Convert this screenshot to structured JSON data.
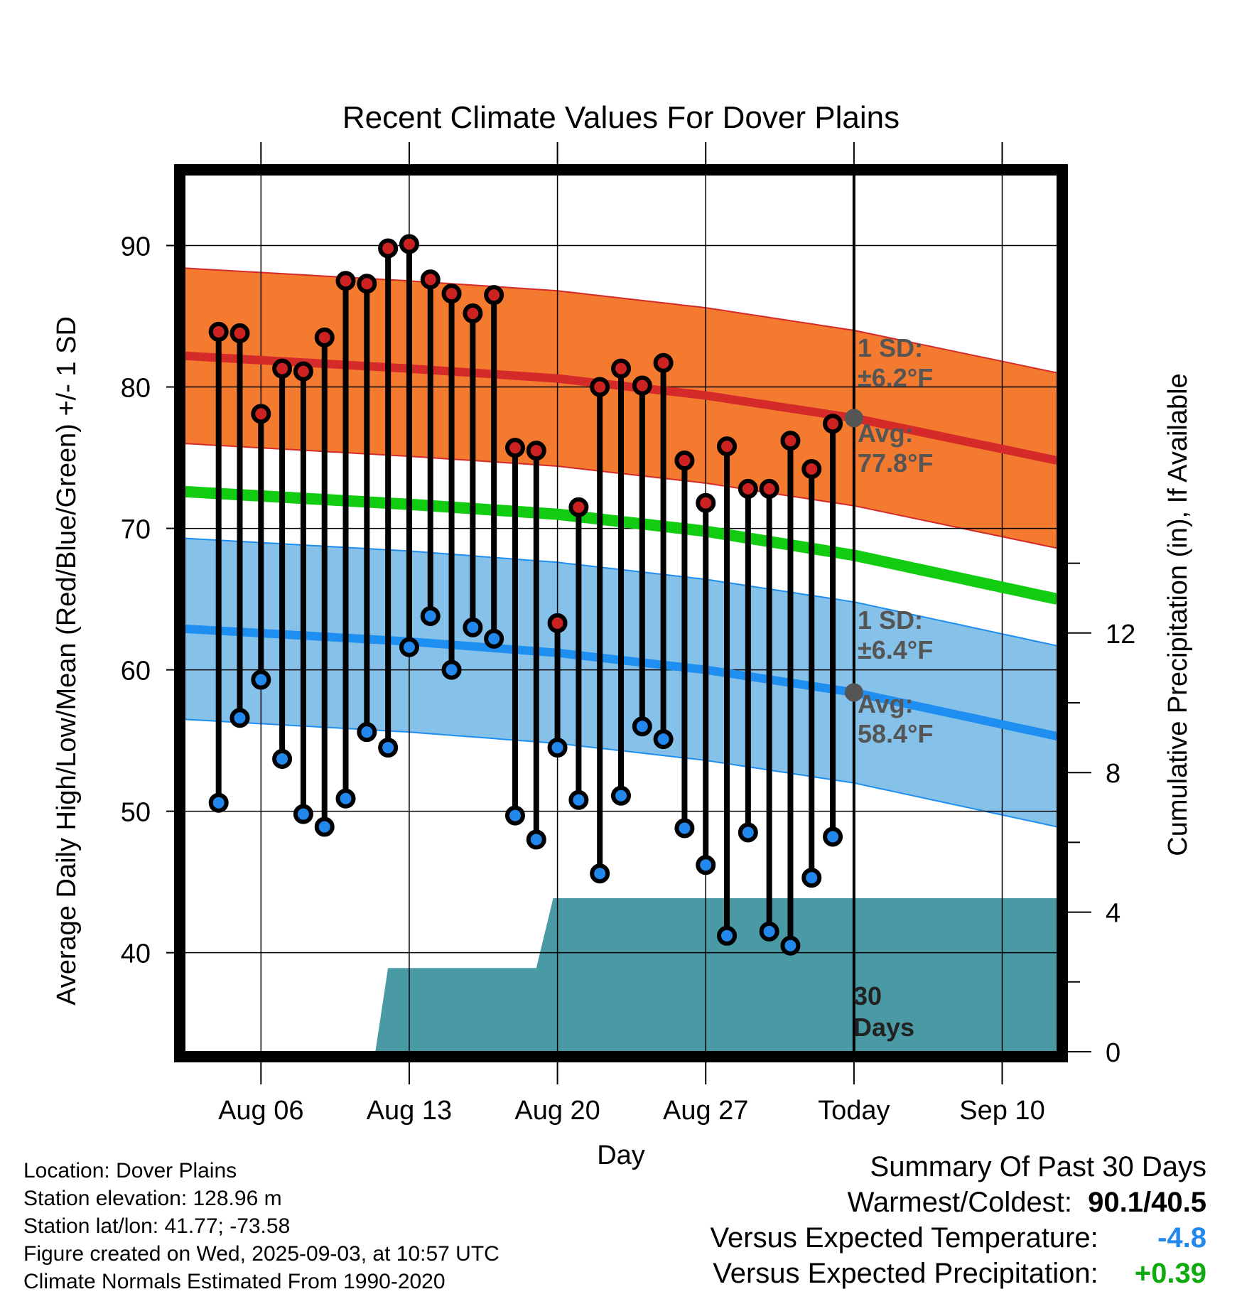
{
  "chart_data": {
    "type": "line",
    "title": "Recent Climate Values For Dover Plains",
    "xlabel": "Day",
    "ylabel_left": "Average Daily High/Low/Mean (Red/Blue/Green) +/- 1 SD",
    "ylabel_right": "Cumulative Precipitation (in), If Available",
    "x_ticks": [
      "Aug 06",
      "Aug 13",
      "Aug 20",
      "Aug 27",
      "Today",
      "Sep 10"
    ],
    "x_tick_days": [
      -28,
      -21,
      -14,
      -7,
      0,
      7
    ],
    "y_left_ticks": [
      40,
      50,
      60,
      70,
      80,
      90
    ],
    "y_left_range": [
      33,
      95
    ],
    "y_right_ticks": [
      0,
      4,
      8,
      12
    ],
    "x_range_days": [
      -31.6,
      9.6
    ],
    "grid": true,
    "colors": {
      "high_band": "#f47a30",
      "high_line": "#d42a2a",
      "low_band": "#85c1e9",
      "low_line": "#1e8ff0",
      "mean_line": "#11cc11",
      "precip": "#4a9aa5",
      "high_dot": "#cc2222",
      "low_dot": "#2288ee",
      "avg_dot": "#555555",
      "warm_text": "#000000",
      "versus_temp": "#2288ee",
      "versus_precip": "#11aa11"
    },
    "normals": {
      "day": [
        -31.6,
        -21,
        -14,
        -7,
        0,
        9.6
      ],
      "high_avg": [
        82.2,
        81.3,
        80.6,
        79.4,
        77.8,
        74.8
      ],
      "high_sd": 6.2,
      "low_avg": [
        62.9,
        62.0,
        61.2,
        60.0,
        58.4,
        55.3
      ],
      "low_sd": 6.4,
      "mean_avg": [
        72.6,
        71.7,
        71.0,
        69.8,
        68.1,
        65.0
      ]
    },
    "daily": {
      "day": [
        -30,
        -29,
        -28,
        -27,
        -26,
        -25,
        -24,
        -23,
        -22,
        -21,
        -20,
        -19,
        -18,
        -17,
        -16,
        -15,
        -14,
        -13,
        -12,
        -11,
        -10,
        -9,
        -8,
        -7,
        -6,
        -5,
        -4,
        -3,
        -2,
        -1
      ],
      "high": [
        83.9,
        83.8,
        78.1,
        81.3,
        81.1,
        83.5,
        87.5,
        87.3,
        89.8,
        90.1,
        87.6,
        86.6,
        85.2,
        86.5,
        75.7,
        75.5,
        63.3,
        71.5,
        80.0,
        81.3,
        80.1,
        81.7,
        74.8,
        71.8,
        75.8,
        72.8,
        72.8,
        76.2,
        74.2,
        77.4
      ],
      "low": [
        50.6,
        56.6,
        59.3,
        53.7,
        49.8,
        48.9,
        50.9,
        55.6,
        54.5,
        61.6,
        63.8,
        60.0,
        63.0,
        62.2,
        49.7,
        48.0,
        54.5,
        50.8,
        45.6,
        51.1,
        56.0,
        55.1,
        48.8,
        46.2,
        41.2,
        48.5,
        41.5,
        40.5,
        45.3,
        48.2
      ]
    },
    "precip": {
      "day": [
        -31.6,
        -22.6,
        -22.0,
        -15.0,
        -14.2,
        9.6
      ],
      "cumulative": [
        0,
        0,
        2.4,
        2.4,
        4.4,
        4.4
      ]
    },
    "annotations": {
      "high_sd_l1": "1 SD:",
      "high_sd_l2": "±6.2°F",
      "high_avg_l1": "Avg:",
      "high_avg_l2": "77.8°F",
      "low_sd_l1": "1 SD:",
      "low_sd_l2": "±6.4°F",
      "low_avg_l1": "Avg:",
      "low_avg_l2": "58.4°F",
      "days_l1": "30",
      "days_l2": "Days"
    }
  },
  "footer": {
    "location": "Location: Dover Plains",
    "elevation": "Station elevation: 128.96 m",
    "latlon": "Station lat/lon: 41.77; -73.58",
    "created": "Figure created on Wed, 2025-09-03, at 10:57 UTC",
    "normals": "Climate Normals Estimated From 1990-2020"
  },
  "summary": {
    "title": "Summary Of Past 30 Days",
    "warmest_label": "Warmest/Coldest:",
    "warmest_value": "90.1/40.5",
    "temp_label": "Versus Expected Temperature:",
    "temp_value": "-4.8",
    "precip_label": "Versus Expected Precipitation:",
    "precip_value": "+0.39"
  }
}
